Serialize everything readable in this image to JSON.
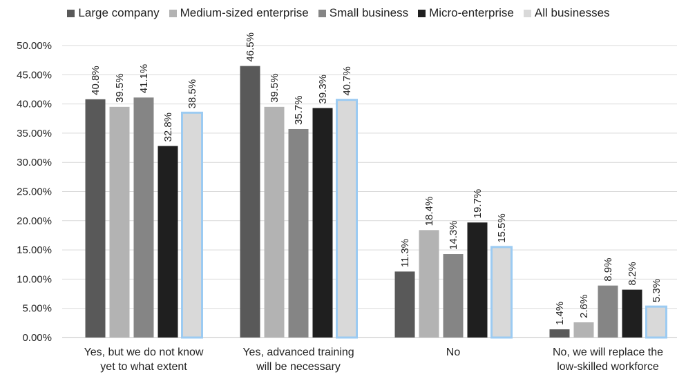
{
  "chart_data": {
    "type": "bar",
    "categories": [
      [
        "Yes, but we do not know",
        "yet to what extent"
      ],
      [
        "Yes, advanced training",
        "will be necessary"
      ],
      [
        "No"
      ],
      [
        "No, we will replace the",
        "low-skilled workforce"
      ]
    ],
    "series": [
      {
        "name": "Large company",
        "color": "#595959",
        "values": [
          40.8,
          46.5,
          11.3,
          1.4
        ],
        "labels": [
          "40.8%",
          "46.5%",
          "11.3%",
          "1.4%"
        ]
      },
      {
        "name": "Medium-sized enterprise",
        "color": "#b3b3b3",
        "values": [
          39.5,
          39.5,
          18.4,
          2.6
        ],
        "labels": [
          "39.5%",
          "39.5%",
          "18.4%",
          "2.6%"
        ]
      },
      {
        "name": "Small business",
        "color": "#858585",
        "values": [
          41.1,
          35.7,
          14.3,
          8.9
        ],
        "labels": [
          "41.1%",
          "35.7%",
          "14.3%",
          "8.9%"
        ]
      },
      {
        "name": "Micro-enterprise",
        "color": "#1f1f1f",
        "values": [
          32.8,
          39.3,
          19.7,
          8.2
        ],
        "labels": [
          "32.8%",
          "39.3%",
          "19.7%",
          "8.2%"
        ]
      },
      {
        "name": "All businesses",
        "color": "#d9d9d9",
        "values": [
          38.5,
          40.7,
          15.5,
          5.3
        ],
        "labels": [
          "38.5%",
          "40.7%",
          "15.5%",
          "5.3%"
        ]
      }
    ],
    "ylim": [
      0,
      50
    ],
    "yticks": [
      "0.00%",
      "5.00%",
      "10.00%",
      "15.00%",
      "20.00%",
      "25.00%",
      "30.00%",
      "35.00%",
      "40.00%",
      "45.00%",
      "50.00%"
    ],
    "grid": true,
    "legend_position": "top",
    "highlight_color": "#9ccbf2"
  }
}
